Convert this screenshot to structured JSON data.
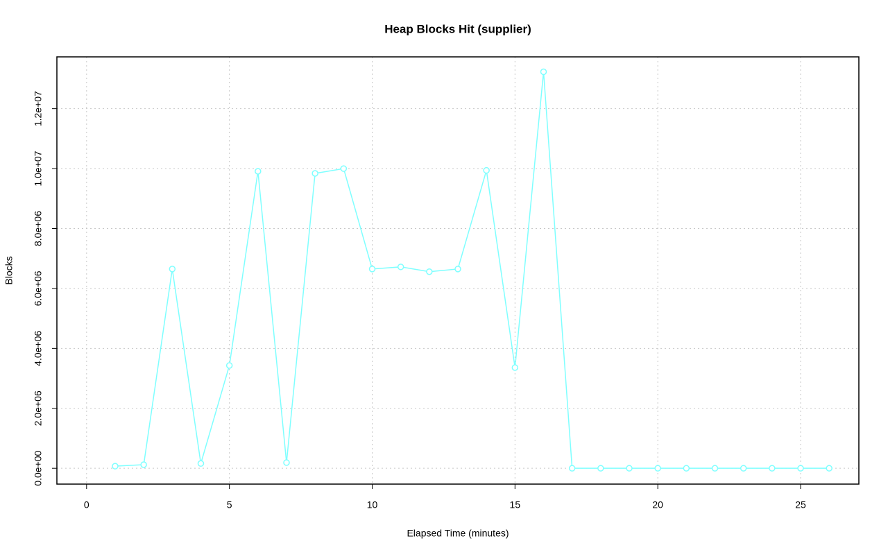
{
  "chart_data": {
    "type": "line",
    "title": "Heap Blocks Hit (supplier)",
    "xlabel": "Elapsed Time (minutes)",
    "ylabel": "Blocks",
    "x": [
      1,
      2,
      3,
      4,
      5,
      6,
      7,
      8,
      9,
      10,
      11,
      12,
      13,
      14,
      15,
      16,
      17,
      18,
      19,
      20,
      21,
      22,
      23,
      24,
      25,
      26
    ],
    "values": [
      70000,
      120000,
      6650000,
      160000,
      3430000,
      9910000,
      190000,
      9840000,
      10000000,
      6650000,
      6720000,
      6560000,
      6650000,
      9940000,
      3360000,
      13230000,
      0,
      0,
      0,
      0,
      0,
      0,
      0,
      0,
      0,
      0
    ],
    "color": "#7fffff",
    "xlim": [
      -1.04,
      27.04
    ],
    "xticks": [
      0,
      5,
      10,
      15,
      20,
      25
    ],
    "ylim": [
      -528000,
      13728000
    ],
    "yticks": [
      {
        "value": 0,
        "label": "0.0e+00"
      },
      {
        "value": 2000000,
        "label": "2.0e+06"
      },
      {
        "value": 4000000,
        "label": "4.0e+06"
      },
      {
        "value": 6000000,
        "label": "6.0e+06"
      },
      {
        "value": 8000000,
        "label": "8.0e+06"
      },
      {
        "value": 10000000,
        "label": "1.0e+07"
      },
      {
        "value": 12000000,
        "label": "1.2e+07"
      }
    ],
    "grid": true
  }
}
